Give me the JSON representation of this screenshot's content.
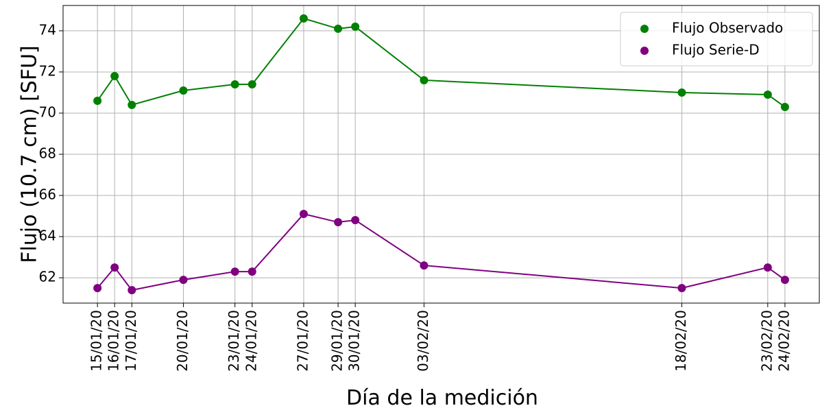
{
  "chart_data": {
    "type": "line",
    "xlabel": "Día de la medición",
    "ylabel": "Flujo (10.7 cm) [SFU]",
    "x": [
      "15/01/20",
      "16/01/20",
      "17/01/20",
      "20/01/20",
      "23/01/20",
      "24/01/20",
      "27/01/20",
      "29/01/20",
      "30/01/20",
      "03/02/20",
      "18/02/20",
      "23/02/20",
      "24/02/20"
    ],
    "series": [
      {
        "name": "Flujo Observado",
        "color": "#008000",
        "values": [
          70.6,
          71.8,
          70.4,
          71.1,
          71.4,
          71.4,
          74.6,
          74.1,
          74.2,
          71.6,
          71.0,
          70.9,
          70.3
        ]
      },
      {
        "name": "Flujo Serie-D",
        "color": "#800080",
        "values": [
          61.5,
          62.5,
          61.4,
          61.9,
          62.3,
          62.3,
          65.1,
          64.7,
          64.8,
          62.6,
          61.5,
          62.5,
          61.9
        ]
      }
    ],
    "xlim": [
      "13/01/20",
      "26/02/20"
    ],
    "ylim": [
      60.77,
      75.23
    ],
    "yticks": [
      62,
      64,
      66,
      68,
      70,
      72,
      74
    ],
    "grid": true,
    "legend": "upper right"
  }
}
